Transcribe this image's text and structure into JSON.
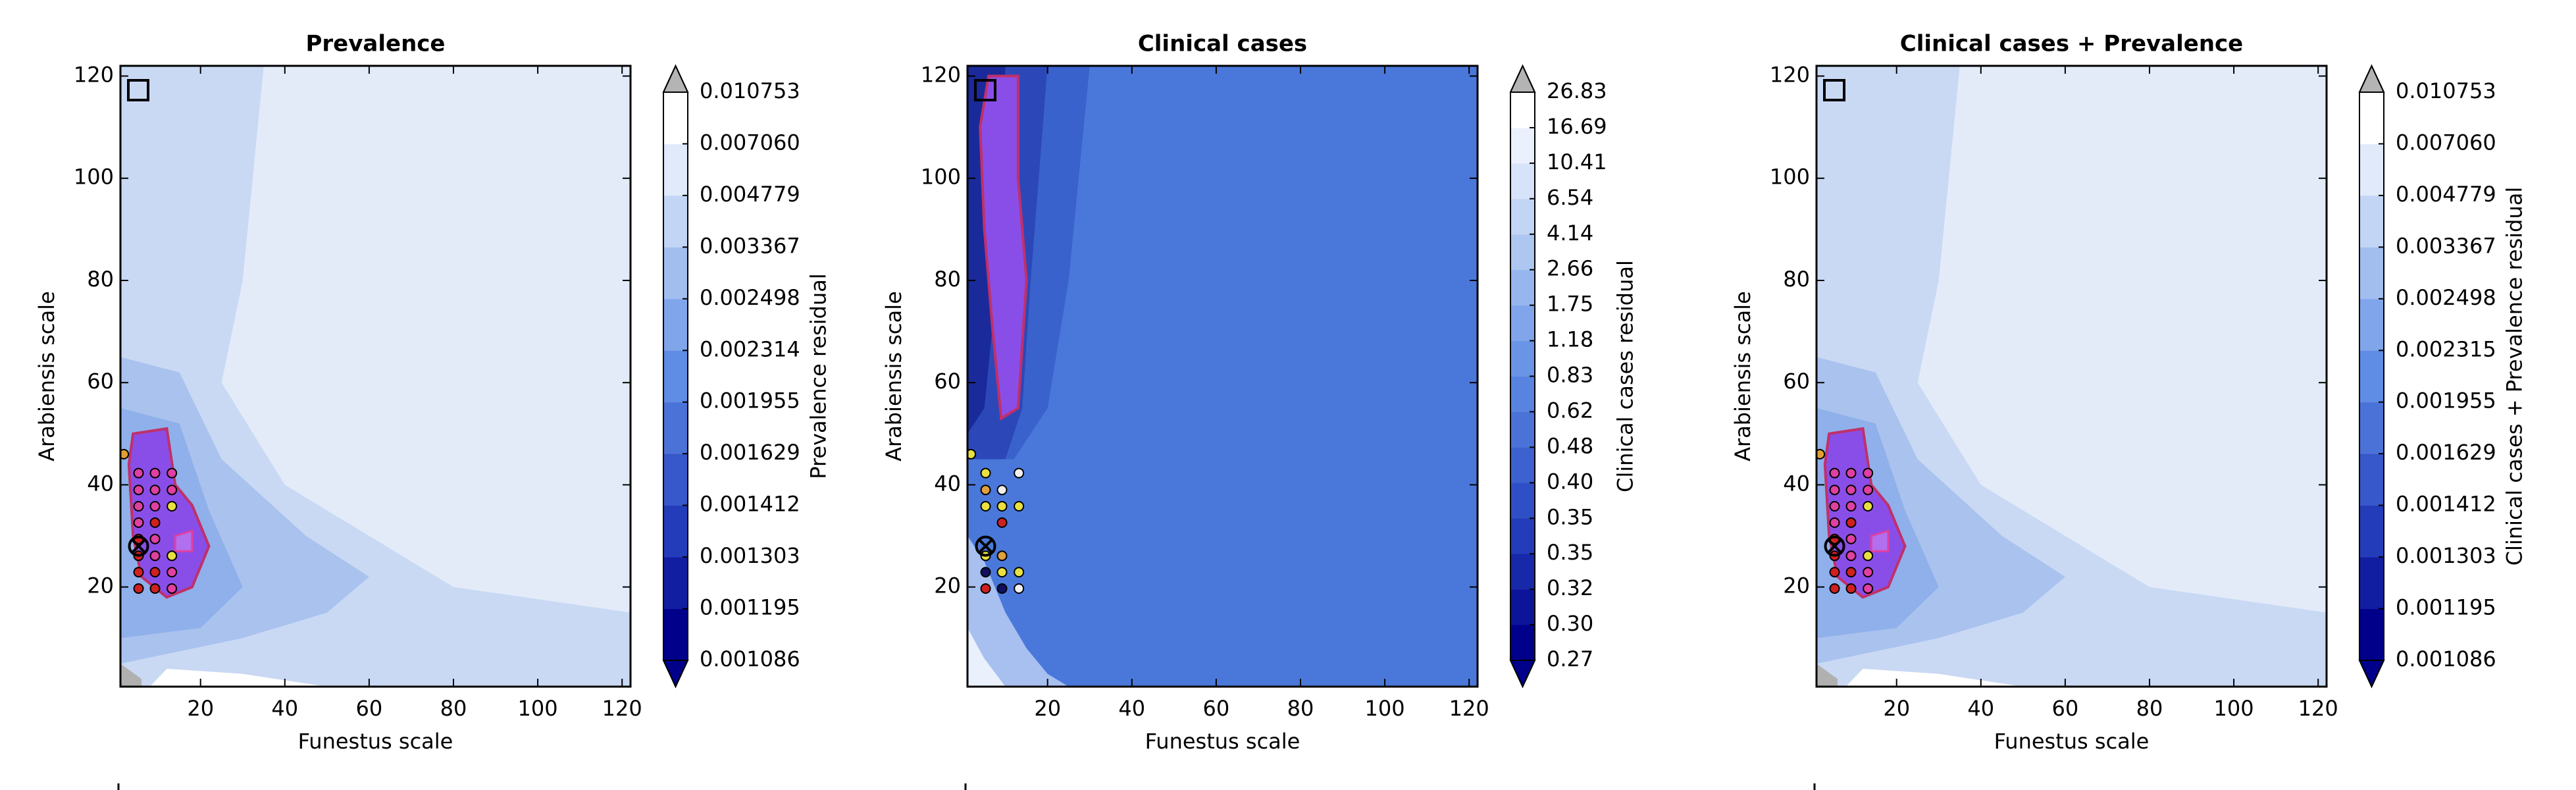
{
  "chart_data": [
    {
      "type": "contour",
      "title": "Prevalence",
      "xlabel": "Funestus scale",
      "ylabel": "Arabiensis scale",
      "xlim": [
        1,
        122
      ],
      "ylim": [
        0.5,
        122
      ],
      "xticks": [
        20,
        40,
        60,
        80,
        100,
        120
      ],
      "yticks": [
        20,
        40,
        60,
        80,
        100,
        120
      ],
      "colorbar": {
        "label": "Prevalence residual",
        "cmap": [
          "#00008b",
          "#2c4bc4",
          "#5f8ce4",
          "#b3cbf2",
          "#ffffff"
        ],
        "over": "#b4b4b4",
        "under": "#00008b",
        "ticks": [
          0.001086,
          0.001195,
          0.001303,
          0.001412,
          0.001629,
          0.001955,
          0.002314,
          0.002498,
          0.003367,
          0.004779,
          {
            "value": 0.00706,
            "label": "0.007060"
          },
          0.010753
        ]
      },
      "series": [
        {
          "x": [
            1.8,
            5.3,
            9.2,
            13.2,
            5.3,
            9.2,
            13.2,
            5.3,
            9.2,
            13.2,
            5.3,
            9.2,
            5.3,
            9.2,
            5.3,
            9.2,
            13.2,
            5.3,
            9.2,
            13.2,
            5.3,
            9.2,
            13.2
          ],
          "y": [
            46,
            42.3,
            42.3,
            42.3,
            39,
            39,
            39,
            35.8,
            35.8,
            35.8,
            32.6,
            32.6,
            29.4,
            29.4,
            26.1,
            26.1,
            26.1,
            22.9,
            22.9,
            22.9,
            19.7,
            19.7,
            19.7
          ],
          "colors": [
            "#e0a030",
            "#e040a0",
            "#e040a0",
            "#e040a0",
            "#e040a0",
            "#e040a0",
            "#e040a0",
            "#e040a0",
            "#e040a0",
            "#e8e040",
            "#e040a0",
            "#d02020",
            "#d02020",
            "#e040a0",
            "#d02020",
            "#e040a0",
            "#e8e040",
            "#d02020",
            "#d02020",
            "#e040a0",
            "#d02020",
            "#d02020",
            "#e040a0"
          ]
        }
      ]
    },
    {
      "type": "contour",
      "title": "Clinical cases",
      "xlabel": "Funestus scale",
      "ylabel": "Arabiensis scale",
      "xlim": [
        1,
        122
      ],
      "ylim": [
        0.5,
        122
      ],
      "xticks": [
        20,
        40,
        60,
        80,
        100,
        120
      ],
      "yticks": [
        20,
        40,
        60,
        80,
        100,
        120
      ],
      "colorbar": {
        "label": "Clinical cases residual",
        "cmap": [
          "#00008b",
          "#2c4bc4",
          "#5f8ce4",
          "#b3cbf2",
          "#ffffff"
        ],
        "over": "#b4b4b4",
        "under": "#00008b",
        "ticks": [
          0.27,
          {
            "value": 0.3,
            "label": "0.30"
          },
          0.32,
          0.35,
          0.35,
          {
            "value": 0.4,
            "label": "0.40"
          },
          0.48,
          0.62,
          0.83,
          1.18,
          1.75,
          2.66,
          4.14,
          6.54,
          10.41,
          16.69,
          26.83
        ]
      },
      "series": [
        {
          "x": [
            1.8,
            5.3,
            13.2,
            5.3,
            9.2,
            5.3,
            9.2,
            13.2,
            9.2,
            5.3,
            9.2,
            5.3,
            9.2,
            13.2,
            5.3,
            9.2,
            13.2
          ],
          "y": [
            46,
            42.3,
            42.3,
            39,
            39,
            35.8,
            35.8,
            35.8,
            32.6,
            26.1,
            26.1,
            22.9,
            22.9,
            22.9,
            19.7,
            19.7,
            19.7
          ],
          "colors": [
            "#e8e040",
            "#e8e040",
            "#f0f0f0",
            "#e0a040",
            "#f0f0f0",
            "#e8e040",
            "#e8e040",
            "#e8e040",
            "#d02020",
            "#e8e040",
            "#e0a040",
            "#101060",
            "#e8e040",
            "#e8e040",
            "#d02020",
            "#101060",
            "#f0f0f0"
          ]
        }
      ]
    },
    {
      "type": "contour",
      "title": "Clinical cases + Prevalence",
      "xlabel": "Funestus scale",
      "ylabel": "Arabiensis scale",
      "xlim": [
        1,
        122
      ],
      "ylim": [
        0.5,
        122
      ],
      "xticks": [
        20,
        40,
        60,
        80,
        100,
        120
      ],
      "yticks": [
        20,
        40,
        60,
        80,
        100,
        120
      ],
      "colorbar": {
        "label": "Clinical cases + Prevalence residual",
        "cmap": [
          "#00008b",
          "#2c4bc4",
          "#5f8ce4",
          "#b3cbf2",
          "#ffffff"
        ],
        "over": "#b4b4b4",
        "under": "#00008b",
        "ticks": [
          0.001086,
          0.001195,
          0.001303,
          0.001412,
          0.001629,
          0.001955,
          0.002315,
          0.002498,
          0.003367,
          0.004779,
          {
            "value": 0.00706,
            "label": "0.007060"
          },
          0.010753
        ]
      },
      "series": [
        {
          "x": [
            1.8,
            5.3,
            9.2,
            13.2,
            5.3,
            9.2,
            13.2,
            5.3,
            9.2,
            13.2,
            5.3,
            9.2,
            5.3,
            9.2,
            5.3,
            9.2,
            13.2,
            5.3,
            9.2,
            13.2,
            5.3,
            9.2,
            13.2
          ],
          "y": [
            46,
            42.3,
            42.3,
            42.3,
            39,
            39,
            39,
            35.8,
            35.8,
            35.8,
            32.6,
            32.6,
            29.4,
            29.4,
            26.1,
            26.1,
            26.1,
            22.9,
            22.9,
            22.9,
            19.7,
            19.7,
            19.7
          ],
          "colors": [
            "#e0a030",
            "#e040a0",
            "#e040a0",
            "#e040a0",
            "#e040a0",
            "#e040a0",
            "#e040a0",
            "#e040a0",
            "#e040a0",
            "#e8e040",
            "#e040a0",
            "#d02020",
            "#d02020",
            "#e040a0",
            "#d02020",
            "#e040a0",
            "#e8e040",
            "#d02020",
            "#d02020",
            "#e040a0",
            "#d02020",
            "#d02020",
            "#e040a0"
          ]
        }
      ]
    }
  ]
}
